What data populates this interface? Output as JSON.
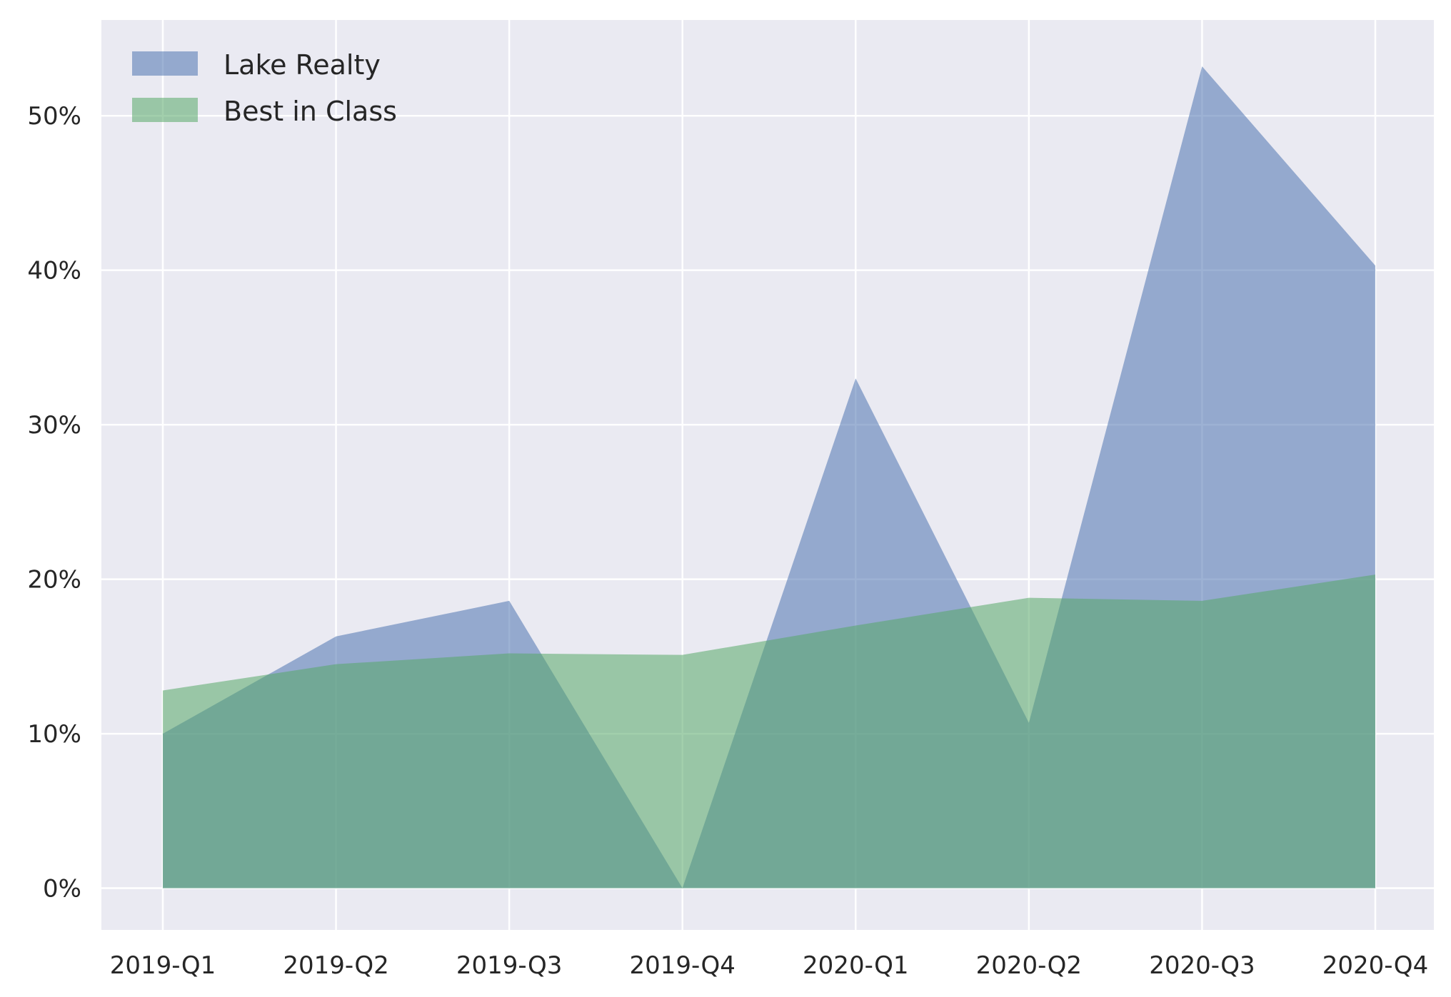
{
  "chart_data": {
    "type": "area",
    "categories": [
      "2019-Q1",
      "2019-Q2",
      "2019-Q3",
      "2019-Q4",
      "2020-Q1",
      "2020-Q2",
      "2020-Q3",
      "2020-Q4"
    ],
    "series": [
      {
        "name": "Lake Realty",
        "values": [
          10.0,
          16.3,
          18.6,
          0.0,
          33.0,
          10.7,
          53.2,
          40.3
        ],
        "color": "#4c72b0"
      },
      {
        "name": "Best in Class",
        "values": [
          12.8,
          14.5,
          15.2,
          15.1,
          17.0,
          18.8,
          18.6,
          20.3
        ],
        "color": "#55a868"
      }
    ],
    "ylim": [
      -2.7,
      56.2
    ],
    "yticks": [
      0,
      10,
      20,
      30,
      40,
      50
    ],
    "ytick_format": "%",
    "xlabel": "",
    "ylabel": "",
    "title": "",
    "grid": true,
    "legend_position": "top-left",
    "background": "#eaeaf2",
    "fill_opacity": 0.55
  }
}
